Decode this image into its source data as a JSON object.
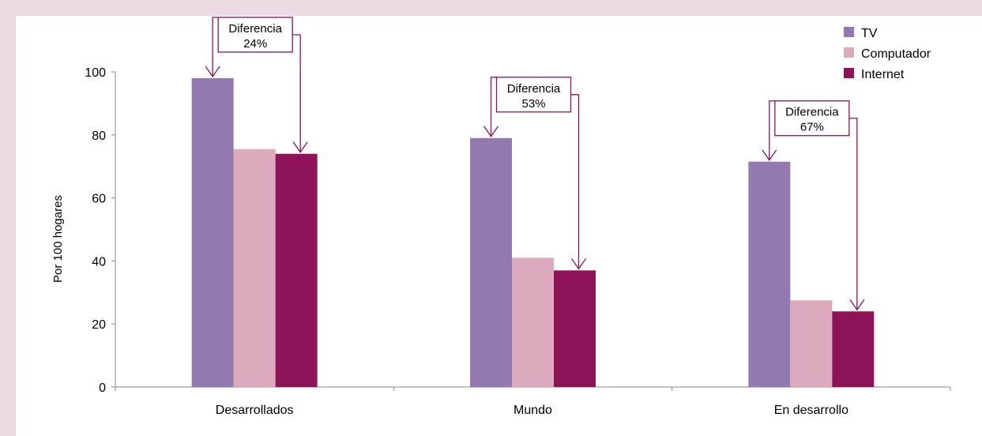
{
  "chart_data": {
    "type": "bar",
    "categories": [
      "Desarrollados",
      "Mundo",
      "En desarrollo"
    ],
    "series": [
      {
        "name": "TV",
        "values": [
          98,
          79,
          71.5
        ],
        "color": "#9279b0"
      },
      {
        "name": "Computador",
        "values": [
          75.5,
          41,
          27.5
        ],
        "color": "#dcaabd"
      },
      {
        "name": "Internet",
        "values": [
          74,
          37,
          24
        ],
        "color": "#8e1257"
      }
    ],
    "ylabel": "Por 100 hogares",
    "ylim": [
      0,
      100
    ],
    "yticks": [
      0,
      20,
      40,
      60,
      80,
      100
    ],
    "grid": false,
    "legend": "top-right",
    "annotations": [
      {
        "category": "Desarrollados",
        "line1": "Diferencia",
        "line2": "24%"
      },
      {
        "category": "Mundo",
        "line1": "Diferencia",
        "line2": "53%"
      },
      {
        "category": "En desarrollo",
        "line1": "Diferencia",
        "line2": "67%"
      }
    ],
    "annotation_color": "#8e1257"
  }
}
